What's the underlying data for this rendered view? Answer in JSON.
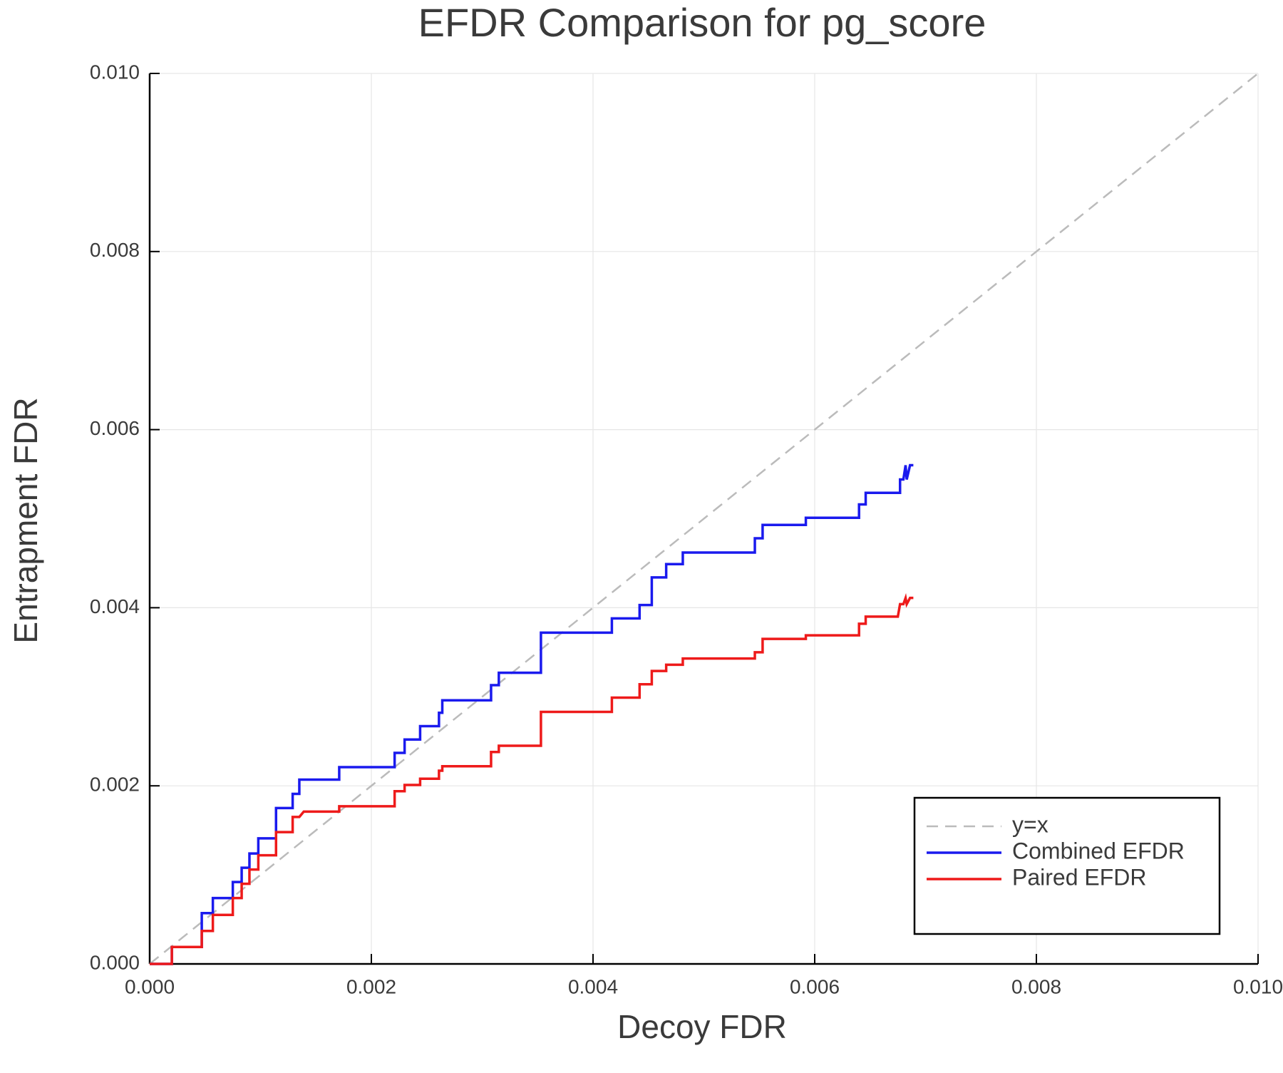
{
  "chart_data": {
    "type": "line",
    "title": "EFDR Comparison for pg_score",
    "x_label": "Decoy FDR",
    "y_label": "Entrapment FDR",
    "xlim": [
      0,
      0.01
    ],
    "ylim": [
      0,
      0.01
    ],
    "xticks": [
      {
        "value": 0,
        "label": "0.000"
      },
      {
        "value": 0.002,
        "label": "0.002"
      },
      {
        "value": 0.004,
        "label": "0.004"
      },
      {
        "value": 0.006,
        "label": "0.006"
      },
      {
        "value": 0.008,
        "label": "0.008"
      },
      {
        "value": 0.01,
        "label": "0.010"
      }
    ],
    "yticks": [
      {
        "value": 0,
        "label": "0.000"
      },
      {
        "value": 0.002,
        "label": "0.002"
      },
      {
        "value": 0.004,
        "label": "0.004"
      },
      {
        "value": 0.006,
        "label": "0.006"
      },
      {
        "value": 0.008,
        "label": "0.008"
      },
      {
        "value": 0.01,
        "label": "0.010"
      }
    ],
    "grid": true,
    "legend": "bottom right",
    "series": [
      {
        "name": "y=x",
        "color": "#bbbbbb",
        "dashed": true,
        "x": [
          0,
          0.01
        ],
        "values": [
          0,
          0.01
        ]
      },
      {
        "name": "Combined EFDR",
        "color": "#1a1aee",
        "dashed": false,
        "x": [
          0,
          0.0002,
          0.0002,
          0.00047,
          0.00047,
          0.00057,
          0.00057,
          0.00075,
          0.00075,
          0.00083,
          0.00083,
          0.0009,
          0.0009,
          0.00098,
          0.00098,
          0.00114,
          0.00114,
          0.00129,
          0.00129,
          0.00135,
          0.00135,
          0.00171,
          0.00171,
          0.00221,
          0.00221,
          0.0023,
          0.0023,
          0.00244,
          0.00244,
          0.00261,
          0.00261,
          0.00264,
          0.00264,
          0.00308,
          0.00308,
          0.00315,
          0.00315,
          0.00353,
          0.00353,
          0.00417,
          0.00417,
          0.00442,
          0.00442,
          0.00453,
          0.00453,
          0.00466,
          0.00466,
          0.00481,
          0.00481,
          0.00546,
          0.00546,
          0.00553,
          0.00553,
          0.00592,
          0.00592,
          0.0064,
          0.0064,
          0.00646,
          0.00646,
          0.00677,
          0.00677,
          0.0068,
          0.00682,
          0.00683,
          0.00686,
          0.00689
        ],
        "values": [
          0,
          0,
          0.00019,
          0.00019,
          0.00057,
          0.00057,
          0.00074,
          0.00074,
          0.00092,
          0.00092,
          0.00108,
          0.00108,
          0.00124,
          0.00124,
          0.00141,
          0.00141,
          0.00175,
          0.00175,
          0.00191,
          0.00191,
          0.00207,
          0.00207,
          0.00221,
          0.00221,
          0.00237,
          0.00237,
          0.00252,
          0.00252,
          0.00267,
          0.00267,
          0.00282,
          0.00282,
          0.00296,
          0.00296,
          0.00313,
          0.00313,
          0.00327,
          0.00327,
          0.00372,
          0.00372,
          0.00388,
          0.00388,
          0.00403,
          0.00403,
          0.00434,
          0.00434,
          0.00449,
          0.00449,
          0.00462,
          0.00462,
          0.00478,
          0.00478,
          0.00493,
          0.00493,
          0.00501,
          0.00501,
          0.00516,
          0.00516,
          0.00529,
          0.00529,
          0.00544,
          0.00544,
          0.0056,
          0.00544,
          0.0056,
          0.0056
        ]
      },
      {
        "name": "Paired EFDR",
        "color": "#ee1a1a",
        "dashed": false,
        "x": [
          0,
          0.0002,
          0.0002,
          0.00047,
          0.00047,
          0.00057,
          0.00057,
          0.00075,
          0.00075,
          0.00083,
          0.00083,
          0.0009,
          0.0009,
          0.00098,
          0.00098,
          0.00114,
          0.00114,
          0.00129,
          0.00129,
          0.00135,
          0.00139,
          0.00171,
          0.00171,
          0.00221,
          0.00221,
          0.0023,
          0.0023,
          0.00244,
          0.00244,
          0.00261,
          0.00261,
          0.00264,
          0.00264,
          0.00308,
          0.00308,
          0.00315,
          0.00315,
          0.00353,
          0.00353,
          0.00417,
          0.00417,
          0.00442,
          0.00442,
          0.00453,
          0.00453,
          0.00466,
          0.00466,
          0.00481,
          0.00481,
          0.00546,
          0.00546,
          0.00553,
          0.00553,
          0.00592,
          0.00592,
          0.0064,
          0.0064,
          0.00646,
          0.00646,
          0.00675,
          0.00677,
          0.0068,
          0.00682,
          0.00683,
          0.00686,
          0.00689
        ],
        "values": [
          0,
          0,
          0.00019,
          0.00019,
          0.00037,
          0.00037,
          0.00055,
          0.00055,
          0.00074,
          0.00074,
          0.0009,
          0.0009,
          0.00106,
          0.00106,
          0.00122,
          0.00122,
          0.00148,
          0.00148,
          0.00165,
          0.00165,
          0.00171,
          0.00171,
          0.00177,
          0.00177,
          0.00194,
          0.00194,
          0.00201,
          0.00201,
          0.00208,
          0.00208,
          0.00217,
          0.00217,
          0.00222,
          0.00222,
          0.00238,
          0.00238,
          0.00245,
          0.00245,
          0.00283,
          0.00283,
          0.00299,
          0.00299,
          0.00314,
          0.00314,
          0.00329,
          0.00329,
          0.00336,
          0.00336,
          0.00343,
          0.00343,
          0.0035,
          0.0035,
          0.00365,
          0.00365,
          0.00369,
          0.00369,
          0.00382,
          0.00382,
          0.0039,
          0.0039,
          0.00404,
          0.00404,
          0.00411,
          0.00404,
          0.00411,
          0.00411
        ]
      }
    ]
  }
}
